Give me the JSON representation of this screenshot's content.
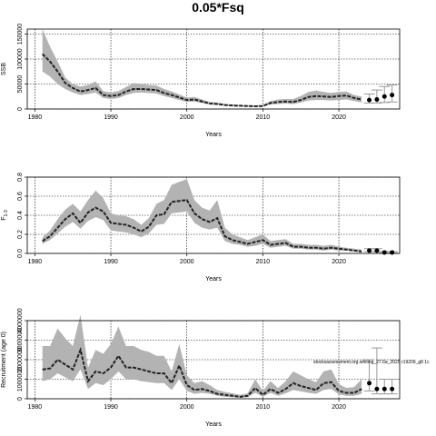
{
  "figure_title": "0.05*Fsq",
  "chart_data": [
    {
      "type": "area",
      "panel": "ssb",
      "ylabel": "SSB",
      "xlabel": "Years",
      "xlim": [
        1979,
        2028
      ],
      "ylim": [
        0,
        160000
      ],
      "xticks": [
        1980,
        1990,
        2000,
        2010,
        2020
      ],
      "yticks": [
        0,
        50000,
        100000,
        150000
      ],
      "grid": true,
      "years": [
        1981,
        1982,
        1983,
        1984,
        1985,
        1986,
        1987,
        1988,
        1989,
        1990,
        1991,
        1992,
        1993,
        1994,
        1995,
        1996,
        1997,
        1998,
        1999,
        2000,
        2001,
        2002,
        2003,
        2004,
        2005,
        2006,
        2007,
        2008,
        2009,
        2010,
        2011,
        2012,
        2013,
        2014,
        2015,
        2016,
        2017,
        2018,
        2019,
        2020,
        2021,
        2022,
        2023
      ],
      "median": [
        110000,
        95000,
        75000,
        52000,
        42000,
        35000,
        38000,
        42000,
        28000,
        26000,
        28000,
        35000,
        40000,
        40000,
        39000,
        38000,
        32000,
        28000,
        23000,
        18000,
        19000,
        15000,
        11000,
        10000,
        8000,
        7000,
        6500,
        6000,
        5500,
        6000,
        12000,
        14000,
        15000,
        14000,
        18000,
        24000,
        26000,
        25000,
        24000,
        26000,
        27000,
        22000,
        19000
      ],
      "lower": [
        75000,
        65000,
        50000,
        40000,
        33000,
        28000,
        30000,
        33000,
        22000,
        20000,
        22000,
        28000,
        32000,
        33000,
        32000,
        31000,
        26000,
        22000,
        18000,
        14000,
        15000,
        12000,
        9000,
        8000,
        6500,
        5500,
        5000,
        4500,
        4000,
        4500,
        9000,
        10000,
        11000,
        10000,
        13000,
        17000,
        18000,
        18000,
        17000,
        18000,
        19000,
        16000,
        13000
      ],
      "upper": [
        160000,
        125000,
        95000,
        63000,
        50000,
        45000,
        48000,
        55000,
        36000,
        33000,
        36000,
        44000,
        52000,
        50000,
        48000,
        47000,
        40000,
        35000,
        29000,
        23000,
        24000,
        19000,
        14000,
        13000,
        10000,
        9000,
        8000,
        7500,
        7000,
        8000,
        16000,
        19000,
        20000,
        20000,
        26000,
        34000,
        37000,
        34000,
        32000,
        34000,
        35000,
        28000,
        25000
      ],
      "proj_years": [
        2024,
        2025,
        2026,
        2027
      ],
      "proj_median": [
        18000,
        19000,
        25000,
        28000
      ],
      "proj_lower": [
        12000,
        12000,
        13000,
        14000
      ],
      "proj_upper": [
        30000,
        38000,
        45000,
        48000
      ]
    },
    {
      "type": "area",
      "panel": "f",
      "ylabel": "F",
      "ylabel_sub": "1-3",
      "xlabel": "Years",
      "xlim": [
        1979,
        2028
      ],
      "ylim": [
        0,
        0.8
      ],
      "xticks": [
        1980,
        1990,
        2000,
        2010,
        2020
      ],
      "yticks": [
        0.0,
        0.2,
        0.4,
        0.6,
        0.8
      ],
      "ytick_labels": [
        "0.0",
        "0.2",
        "0.4",
        "0.6",
        "0.8"
      ],
      "grid": true,
      "years": [
        1981,
        1982,
        1983,
        1984,
        1985,
        1986,
        1987,
        1988,
        1989,
        1990,
        1991,
        1992,
        1993,
        1994,
        1995,
        1996,
        1997,
        1998,
        1999,
        2000,
        2001,
        2002,
        2003,
        2004,
        2005,
        2006,
        2007,
        2008,
        2009,
        2010,
        2011,
        2012,
        2013,
        2014,
        2015,
        2016,
        2017,
        2018,
        2019,
        2020,
        2021,
        2022,
        2023
      ],
      "median": [
        0.13,
        0.18,
        0.27,
        0.36,
        0.42,
        0.32,
        0.43,
        0.48,
        0.44,
        0.32,
        0.31,
        0.3,
        0.27,
        0.23,
        0.28,
        0.4,
        0.41,
        0.54,
        0.55,
        0.56,
        0.42,
        0.36,
        0.33,
        0.37,
        0.18,
        0.14,
        0.12,
        0.1,
        0.12,
        0.14,
        0.09,
        0.1,
        0.11,
        0.07,
        0.07,
        0.06,
        0.06,
        0.05,
        0.06,
        0.05,
        0.04,
        0.03,
        0.02
      ],
      "lower": [
        0.1,
        0.14,
        0.21,
        0.28,
        0.33,
        0.26,
        0.34,
        0.38,
        0.35,
        0.24,
        0.23,
        0.22,
        0.2,
        0.17,
        0.21,
        0.3,
        0.31,
        0.42,
        0.43,
        0.44,
        0.32,
        0.27,
        0.25,
        0.27,
        0.13,
        0.1,
        0.09,
        0.07,
        0.08,
        0.1,
        0.06,
        0.07,
        0.08,
        0.05,
        0.05,
        0.04,
        0.04,
        0.03,
        0.04,
        0.03,
        0.03,
        0.02,
        0.01
      ],
      "upper": [
        0.17,
        0.24,
        0.36,
        0.46,
        0.52,
        0.44,
        0.56,
        0.66,
        0.58,
        0.42,
        0.4,
        0.39,
        0.36,
        0.3,
        0.37,
        0.52,
        0.56,
        0.72,
        0.75,
        0.78,
        0.56,
        0.48,
        0.45,
        0.56,
        0.27,
        0.2,
        0.17,
        0.14,
        0.17,
        0.2,
        0.13,
        0.14,
        0.15,
        0.1,
        0.1,
        0.09,
        0.09,
        0.08,
        0.09,
        0.07,
        0.06,
        0.05,
        0.04
      ],
      "proj_years": [
        2024,
        2025,
        2026,
        2027
      ],
      "proj_median": [
        0.03,
        0.03,
        0.01,
        0.01
      ],
      "proj_lower": [
        0.02,
        0.02,
        0.005,
        0.005
      ],
      "proj_upper": [
        0.05,
        0.05,
        0.02,
        0.02
      ]
    },
    {
      "type": "area",
      "panel": "recruitment",
      "ylabel": "Recruitment (age 0)",
      "xlabel": "Years",
      "xlim": [
        1979,
        2028
      ],
      "ylim": [
        0,
        4000000
      ],
      "xticks": [
        1980,
        1990,
        2000,
        2010,
        2020
      ],
      "yticks": [
        0,
        1000000,
        2000000,
        3000000,
        4000000
      ],
      "ytick_labels": [
        "0",
        "1000000",
        "2000000",
        "3000000",
        "4000000"
      ],
      "grid": true,
      "annotation": "stocksassessment.org.whiting_27.6a_2025 r19209_g8 1c",
      "years": [
        1981,
        1982,
        1983,
        1984,
        1985,
        1986,
        1987,
        1988,
        1989,
        1990,
        1991,
        1992,
        1993,
        1994,
        1995,
        1996,
        1997,
        1998,
        1999,
        2000,
        2001,
        2002,
        2003,
        2004,
        2005,
        2006,
        2007,
        2008,
        2009,
        2010,
        2011,
        2012,
        2013,
        2014,
        2015,
        2016,
        2017,
        2018,
        2019,
        2020,
        2021,
        2022,
        2023
      ],
      "median": [
        1500000,
        1550000,
        2000000,
        1750000,
        1500000,
        2500000,
        900000,
        1400000,
        1300000,
        1600000,
        2200000,
        1600000,
        1600000,
        1500000,
        1400000,
        1300000,
        1300000,
        800000,
        1700000,
        700000,
        450000,
        500000,
        400000,
        250000,
        200000,
        150000,
        100000,
        150000,
        550000,
        200000,
        500000,
        300000,
        500000,
        800000,
        650000,
        550000,
        450000,
        800000,
        850000,
        400000,
        300000,
        300000,
        500000
      ],
      "lower": [
        900000,
        1000000,
        1300000,
        1100000,
        900000,
        1500000,
        500000,
        800000,
        700000,
        1000000,
        1400000,
        1000000,
        1000000,
        900000,
        850000,
        800000,
        800000,
        450000,
        1000000,
        400000,
        250000,
        300000,
        250000,
        150000,
        100000,
        80000,
        50000,
        80000,
        300000,
        100000,
        300000,
        150000,
        280000,
        450000,
        380000,
        300000,
        250000,
        450000,
        500000,
        220000,
        150000,
        150000,
        250000
      ],
      "upper": [
        2700000,
        2700000,
        3600000,
        3100000,
        2700000,
        4300000,
        1600000,
        2500000,
        2300000,
        2800000,
        3700000,
        2700000,
        2700000,
        2500000,
        2400000,
        2200000,
        2200000,
        1400000,
        2800000,
        1200000,
        800000,
        900000,
        700000,
        450000,
        350000,
        280000,
        200000,
        280000,
        1000000,
        400000,
        900000,
        550000,
        900000,
        1400000,
        1200000,
        1000000,
        850000,
        1400000,
        1500000,
        750000,
        550000,
        600000,
        1000000
      ],
      "proj_years": [
        2024,
        2025,
        2026,
        2027
      ],
      "proj_median": [
        800000,
        500000,
        500000,
        500000
      ],
      "proj_lower": [
        400000,
        250000,
        250000,
        250000
      ],
      "proj_upper": [
        2000000,
        2600000,
        1000000,
        1000000
      ]
    }
  ]
}
